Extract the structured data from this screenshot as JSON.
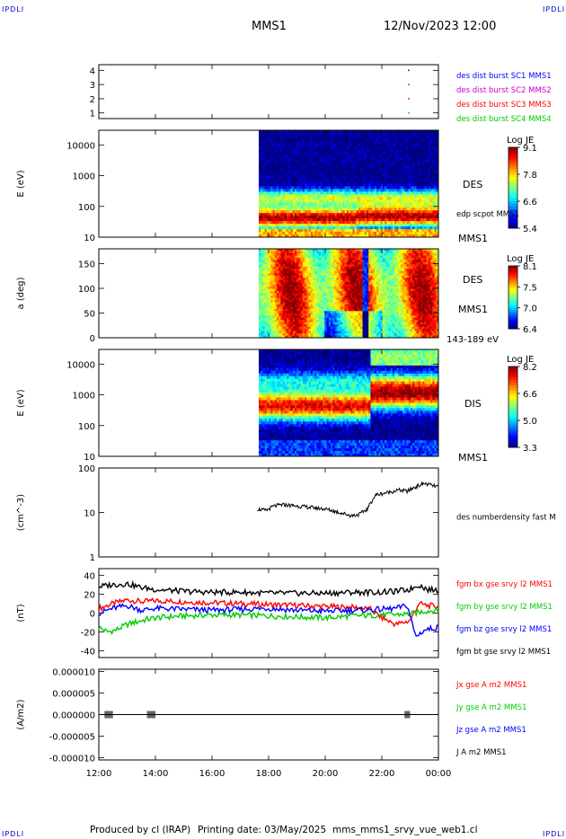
{
  "header": {
    "corner_label": "IPDLI",
    "spacecraft": "MMS1",
    "datetime": "12/Nov/2023 12:00"
  },
  "footer": {
    "producer": "Produced by cl (IRAP)",
    "printing_date": "Printing date: 03/May/2025",
    "product": "mms_mms1_srvy_vue_web1.cl"
  },
  "time_axis": {
    "ticks": [
      {
        "t": 0,
        "label": "12:00"
      },
      {
        "t": 2,
        "label": "14:00"
      },
      {
        "t": 4,
        "label": "16:00"
      },
      {
        "t": 6,
        "label": "18:00"
      },
      {
        "t": 8,
        "label": "20:00"
      },
      {
        "t": 10,
        "label": "22:00"
      },
      {
        "t": 12,
        "label": "00:00"
      }
    ]
  },
  "chart_data": [
    {
      "id": "burst",
      "type": "scatter",
      "ylim": [
        0.6,
        4.4
      ],
      "yticks": [
        {
          "v": 1,
          "label": "1"
        },
        {
          "v": 2,
          "label": "2"
        },
        {
          "v": 3,
          "label": "3"
        },
        {
          "v": 4,
          "label": "4"
        }
      ],
      "series": [
        {
          "name": "des dist burst SC1 MMS1",
          "color": "#0000ff",
          "x": [
            10.95
          ],
          "y": [
            4
          ]
        },
        {
          "name": "des dist burst SC2 MMS2",
          "color": "#cc00cc",
          "x": [
            10.95
          ],
          "y": [
            3
          ]
        },
        {
          "name": "des dist burst SC3 MMS3",
          "color": "#ff0000",
          "x": [
            10.95
          ],
          "y": [
            2
          ]
        },
        {
          "name": "des dist burst SC4 MMS4",
          "color": "#00cc00",
          "x": [
            10.95
          ],
          "y": [
            1
          ]
        }
      ]
    },
    {
      "id": "des_energy",
      "type": "heatmap",
      "ylabel": "E (eV)",
      "yscale": "log",
      "ylim": [
        10,
        30000
      ],
      "yticks": [
        {
          "v": 10,
          "label": "10"
        },
        {
          "v": 100,
          "label": "100"
        },
        {
          "v": 1000,
          "label": "1000"
        },
        {
          "v": 10000,
          "label": "10000"
        }
      ],
      "data_start": 5.65,
      "labels": [
        "DES",
        "edp scpot MMS1",
        "MMS1"
      ],
      "colorbar": {
        "title": "Log JE",
        "ticks": [
          "9.1",
          "7.8",
          "6.6",
          "5.4"
        ]
      }
    },
    {
      "id": "des_pitch",
      "type": "heatmap",
      "ylabel": "a (deg)",
      "ylim": [
        0,
        180
      ],
      "yticks": [
        {
          "v": 0,
          "label": "0"
        },
        {
          "v": 50,
          "label": "50"
        },
        {
          "v": 100,
          "label": "100"
        },
        {
          "v": 150,
          "label": "150"
        }
      ],
      "data_start": 5.65,
      "labels": [
        "DES",
        "MMS1",
        "143-189 eV"
      ],
      "colorbar": {
        "title": "Log JE",
        "ticks": [
          "8.1",
          "7.5",
          "7.0",
          "6.4"
        ]
      }
    },
    {
      "id": "dis_energy",
      "type": "heatmap",
      "ylabel": "E (eV)",
      "yscale": "log",
      "ylim": [
        10,
        30000
      ],
      "yticks": [
        {
          "v": 10,
          "label": "10"
        },
        {
          "v": 100,
          "label": "100"
        },
        {
          "v": 1000,
          "label": "1000"
        },
        {
          "v": 10000,
          "label": "10000"
        }
      ],
      "data_start": 5.65,
      "labels": [
        "DIS",
        "MMS1"
      ],
      "colorbar": {
        "title": "Log JE",
        "ticks": [
          "8.2",
          "6.6",
          "5.0",
          "3.3"
        ]
      }
    },
    {
      "id": "density",
      "type": "line",
      "ylabel": "(cm^-3)",
      "yscale": "log",
      "ylim": [
        1,
        100
      ],
      "yticks": [
        {
          "v": 1,
          "label": "1"
        },
        {
          "v": 10,
          "label": "10"
        },
        {
          "v": 100,
          "label": "100"
        }
      ],
      "series": [
        {
          "name": "des numberdensity fast M",
          "color": "#000000",
          "x": [
            5.6,
            5.9,
            6.2,
            6.5,
            7.0,
            7.5,
            8.0,
            8.5,
            8.9,
            9.2,
            9.5,
            9.8,
            10.2,
            10.6,
            10.9,
            11.2,
            11.5,
            11.8,
            12.0
          ],
          "y": [
            12,
            11,
            14,
            15,
            14,
            13,
            12,
            10,
            8.5,
            9,
            12,
            25,
            28,
            32,
            30,
            38,
            45,
            40,
            38
          ]
        }
      ]
    },
    {
      "id": "bfield",
      "type": "line",
      "ylabel": "(nT)",
      "ylim": [
        -47,
        47
      ],
      "yticks": [
        {
          "v": -40,
          "label": "-40"
        },
        {
          "v": -20,
          "label": "-20"
        },
        {
          "v": 0,
          "label": "0"
        },
        {
          "v": 20,
          "label": "20"
        },
        {
          "v": 40,
          "label": "40"
        }
      ],
      "series": [
        {
          "name": "fgm bx gse srvy l2 MMS1",
          "color": "#ff0000",
          "x": [
            0,
            0.5,
            1,
            1.5,
            2,
            3,
            4,
            5,
            6,
            7,
            8,
            9,
            9.6,
            10,
            10.5,
            11,
            11.3,
            11.6,
            12
          ],
          "y": [
            5,
            10,
            14,
            12,
            13,
            12,
            11,
            10,
            9,
            8,
            7,
            6,
            4,
            -5,
            -12,
            -8,
            10,
            8,
            7
          ]
        },
        {
          "name": "fgm by gse srvy l2 MMS1",
          "color": "#00cc00",
          "x": [
            0,
            0.3,
            0.6,
            1,
            1.5,
            2,
            3,
            4,
            5,
            6,
            7,
            8,
            9,
            10,
            11,
            11.5,
            12
          ],
          "y": [
            -15,
            -20,
            -18,
            -12,
            -8,
            -5,
            -3,
            -2,
            -2,
            -3,
            -4,
            -5,
            -3,
            -2,
            -1,
            2,
            3
          ]
        },
        {
          "name": "fgm bz gse srvy l2 MMS1",
          "color": "#0000ff",
          "x": [
            0,
            0.5,
            1,
            1.5,
            2,
            3,
            4,
            5,
            6,
            7,
            8,
            9,
            10,
            10.5,
            10.9,
            11.2,
            11.5,
            12
          ],
          "y": [
            0,
            5,
            8,
            3,
            5,
            4,
            3,
            4,
            5,
            3,
            2,
            3,
            4,
            5,
            8,
            -25,
            -18,
            -15
          ]
        },
        {
          "name": "fgm bt gse srvy l2 MMS1",
          "color": "#000000",
          "x": [
            0,
            0.5,
            1,
            1.5,
            2,
            3,
            4,
            5,
            6,
            7,
            8,
            9,
            10,
            10.5,
            11,
            11.3,
            11.6,
            12
          ],
          "y": [
            28,
            30,
            31,
            27,
            25,
            23,
            22,
            22,
            21,
            21,
            21,
            22,
            22,
            23,
            25,
            30,
            25,
            24
          ]
        }
      ]
    },
    {
      "id": "current",
      "type": "line",
      "ylabel": "(A/m2)",
      "ylim": [
        -1.05e-05,
        1.05e-05
      ],
      "yticks": [
        {
          "v": -1e-05,
          "label": "-0.000010"
        },
        {
          "v": -5e-06,
          "label": "-0.000005"
        },
        {
          "v": 0,
          "label": "0.000000"
        },
        {
          "v": 5e-06,
          "label": "0.000005"
        },
        {
          "v": 1e-05,
          "label": "0.000010"
        }
      ],
      "series": [
        {
          "name": "Jx gse A m2 MMS1",
          "color": "#ff0000",
          "x": [
            0,
            12
          ],
          "y": [
            0,
            0
          ]
        },
        {
          "name": "Jy gse A m2 MMS1",
          "color": "#00cc00",
          "x": [
            0,
            12
          ],
          "y": [
            0,
            0
          ]
        },
        {
          "name": "Jz gse A m2 MMS1",
          "color": "#0000ff",
          "x": [
            0,
            12
          ],
          "y": [
            0,
            0
          ]
        },
        {
          "name": "J A m2 MMS1",
          "color": "#000000",
          "x": [
            0,
            12
          ],
          "y": [
            0,
            0
          ]
        }
      ]
    }
  ]
}
